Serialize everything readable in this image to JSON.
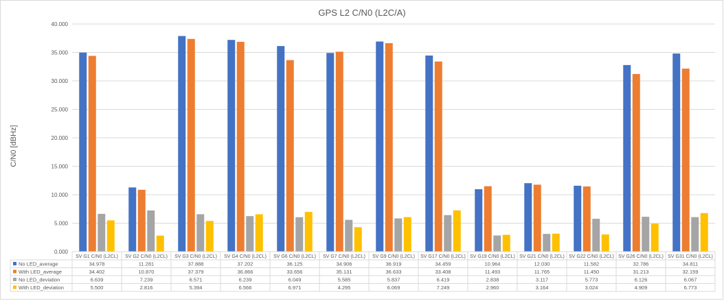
{
  "chart_data": {
    "type": "bar",
    "title": "GPS L2 C/N0 (L2C/A)",
    "ylabel": "C/N0 [dBHz]",
    "xlabel": "",
    "ylim": [
      0,
      40
    ],
    "yticks": [
      "0.000",
      "5.000",
      "10.000",
      "15.000",
      "20.000",
      "25.000",
      "30.000",
      "35.000",
      "40.000"
    ],
    "grid": true,
    "legend": "data-table",
    "categories": [
      "SV G1 C/N0 (L2CL)",
      "SV G2 C/N0 (L2CL)",
      "SV G3 C/N0 (L2CL)",
      "SV G4 C/N0 (L2CL)",
      "SV G6 C/N0 (L2CL)",
      "SV G7 C/N0 (L2CL)",
      "SV G9 C/N0 (L2CL)",
      "SV G17 C/N0 (L2CL)",
      "SV G19 C/N0 (L2CL)",
      "SV G21 C/N0 (L2CL)",
      "SV G22 C/N0 (L2CL)",
      "SV G26 C/N0 (L2CL)",
      "SV G31 C/N0 (L2CL)"
    ],
    "series": [
      {
        "name": "No LED_average",
        "color": "#4472c4",
        "values": [
          34.978,
          11.281,
          37.888,
          37.202,
          36.125,
          34.906,
          36.919,
          34.459,
          10.964,
          12.03,
          11.582,
          32.786,
          34.811
        ],
        "labels": [
          "34.978",
          "11.281",
          "37.888",
          "37.202",
          "36.125",
          "34.906",
          "36.919",
          "34.459",
          "10.964",
          "12.030",
          "11.582",
          "32.786",
          "34.811"
        ]
      },
      {
        "name": "With LED_average",
        "color": "#ed7d31",
        "values": [
          34.402,
          10.87,
          37.379,
          36.866,
          33.656,
          35.131,
          36.633,
          33.408,
          11.493,
          11.765,
          11.45,
          31.213,
          32.159
        ],
        "labels": [
          "34.402",
          "10.870",
          "37.379",
          "36.866",
          "33.656",
          "35.131",
          "36.633",
          "33.408",
          "11.493",
          "11.765",
          "11.450",
          "31.213",
          "32.159"
        ]
      },
      {
        "name": "No LED_deviation",
        "color": "#a5a5a5",
        "values": [
          6.639,
          7.239,
          6.571,
          6.239,
          6.049,
          5.585,
          5.837,
          6.419,
          2.838,
          3.117,
          5.773,
          6.126,
          6.067
        ],
        "labels": [
          "6.639",
          "7.239",
          "6.571",
          "6.239",
          "6.049",
          "5.585",
          "5.837",
          "6.419",
          "2.838",
          "3.117",
          "5.773",
          "6.126",
          "6.067"
        ]
      },
      {
        "name": "With LED_deviation",
        "color": "#ffc000",
        "values": [
          5.5,
          2.816,
          5.394,
          6.566,
          6.971,
          4.295,
          6.069,
          7.249,
          2.96,
          3.164,
          3.024,
          4.909,
          6.773
        ],
        "labels": [
          "5.500",
          "2.816",
          "5.394",
          "6.566",
          "6.971",
          "4.295",
          "6.069",
          "7.249",
          "2.960",
          "3.164",
          "3.024",
          "4.909",
          "6.773"
        ]
      }
    ]
  }
}
